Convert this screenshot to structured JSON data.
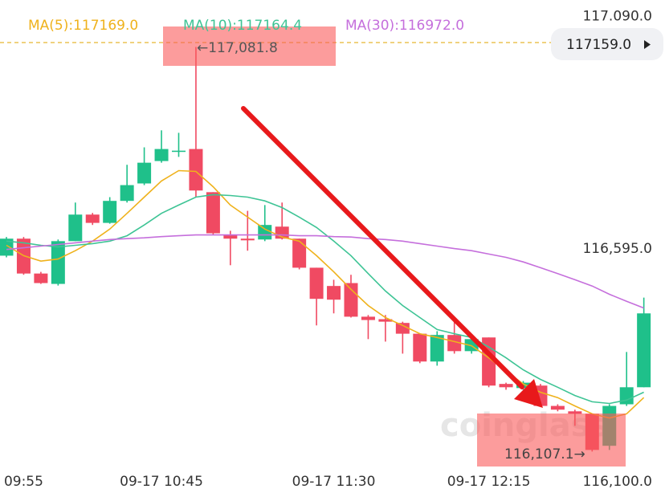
{
  "chart_data": {
    "type": "candlestick",
    "categories": [
      null,
      "09:55",
      null,
      null,
      null,
      null,
      null,
      null,
      null,
      "09-17 10:45",
      null,
      null,
      null,
      null,
      null,
      null,
      null,
      null,
      null,
      "09-17 11:30",
      null,
      null,
      null,
      null,
      null,
      null,
      null,
      null,
      "09-17 12:15",
      null,
      null,
      null,
      null,
      null,
      null,
      null,
      null,
      null
    ],
    "open": [
      116579,
      116620,
      116536,
      116511,
      116614,
      116678,
      116658,
      116711,
      116753,
      116807,
      116829,
      116836,
      116732,
      116629,
      116620,
      116618,
      116649,
      116620,
      116550,
      116506,
      116513,
      116432,
      116426,
      116417,
      116391,
      116324,
      116388,
      116349,
      116382,
      116270,
      116260,
      116266,
      116217,
      116204,
      116198,
      116121,
      116221,
      116262
    ],
    "high": [
      116624,
      116624,
      116540,
      116618,
      116707,
      116682,
      116720,
      116798,
      116840,
      116881,
      116875,
      117081.8,
      116732,
      116639,
      116687,
      116701,
      116707,
      116620,
      116550,
      116521,
      116533,
      116436,
      116436,
      116420,
      116391,
      116397,
      116430,
      116382,
      116382,
      116273,
      116277,
      116270,
      116221,
      116208,
      116198,
      116221,
      116347,
      116478
    ],
    "low": [
      116575,
      116533,
      116511,
      116507,
      116614,
      116653,
      116656,
      116707,
      116749,
      116803,
      116817,
      116720,
      116629,
      116556,
      116591,
      116614,
      116618,
      116546,
      116411,
      116440,
      116430,
      116378,
      116372,
      116343,
      116320,
      116314,
      116343,
      116343,
      116262,
      116256,
      116256,
      116217,
      116204,
      116169,
      116107.1,
      116111,
      116217,
      116262
    ],
    "close": [
      116620,
      116536,
      116513,
      116614,
      116678,
      116658,
      116711,
      116749,
      116803,
      116836,
      116832,
      116736,
      116633,
      116620,
      116616,
      116653,
      116620,
      116550,
      116475,
      116473,
      116432,
      116424,
      116420,
      116391,
      116324,
      116388,
      116349,
      116378,
      116266,
      116262,
      116273,
      116217,
      116208,
      116198,
      116111,
      116217,
      116262,
      116440
    ],
    "up_color": "#1fc08a",
    "down_color": "#f04a62",
    "series": [
      {
        "name": "MA(5):117169.0",
        "color": "#efb21c",
        "values": [
          116604,
          116579,
          116566,
          116571,
          116591,
          116614,
          116643,
          116681,
          116720,
          116759,
          116784,
          116782,
          116745,
          116701,
          116672,
          116643,
          116624,
          116614,
          116579,
          116540,
          116498,
          116459,
          116430,
          116411,
          116391,
          116382,
          116372,
          116362,
          116333,
          116301,
          116270,
          116250,
          116237,
          116217,
          116198,
          116188,
          116198,
          116237
        ]
      },
      {
        "name": "MA(10):117164.4",
        "color": "#3ec495",
        "values": [
          116614,
          116610,
          116604,
          116600,
          116604,
          116608,
          116614,
          116627,
          116653,
          116681,
          116701,
          116720,
          116726,
          116724,
          116720,
          116711,
          116695,
          116672,
          116647,
          116614,
          116579,
          116536,
          116494,
          116459,
          116430,
          116401,
          116391,
          116382,
          116359,
          116333,
          116304,
          116281,
          116262,
          116242,
          116227,
          116223,
          116231,
          116250
        ]
      },
      {
        "name": "MA(30):116972.0",
        "color": "#c56fdc",
        "values": [
          116594,
          116598,
          116602,
          116606,
          116610,
          116614,
          116618,
          116620,
          116622,
          116625,
          116627,
          116629,
          116629,
          116629,
          116629,
          116629,
          116629,
          116627,
          116627,
          116625,
          116624,
          116620,
          116618,
          116614,
          116608,
          116602,
          116596,
          116591,
          116583,
          116575,
          116564,
          116550,
          116536,
          116521,
          116506,
          116486,
          116469,
          116453
        ]
      }
    ],
    "ylim": [
      116073,
      117195
    ],
    "yticks": [
      {
        "value": 117090,
        "label": "117.090.0"
      },
      {
        "value": 116595,
        "label": "116,595.0"
      },
      {
        "value": 116100,
        "label": "116,100.0"
      }
    ],
    "last_price_label": "117159.0",
    "annotations": [
      {
        "text": "←117,081.8"
      },
      {
        "text": "116,107.1→"
      }
    ],
    "watermark": "coinglass"
  }
}
